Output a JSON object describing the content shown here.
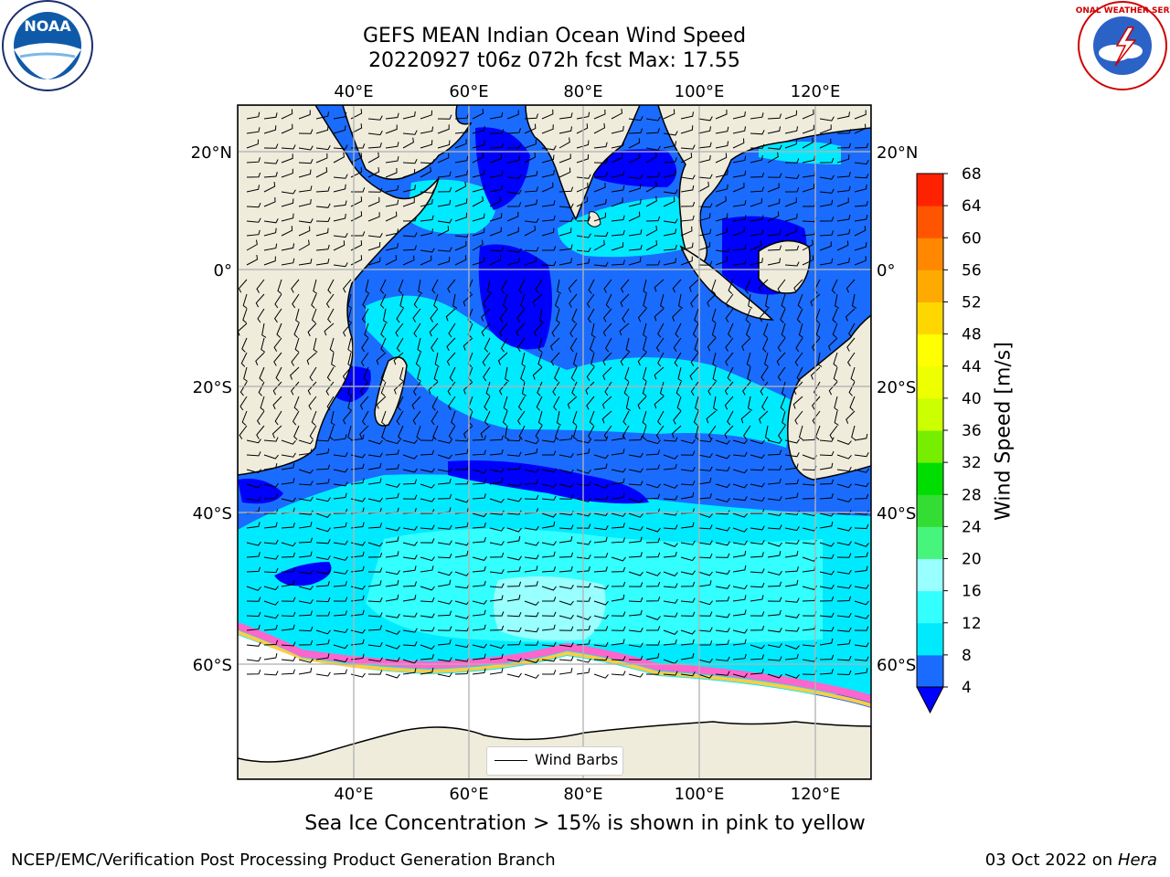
{
  "title": {
    "line1": "GEFS MEAN Indian Ocean Wind Speed",
    "line2": "20220927 t06z 072h fcst   Max: 17.55"
  },
  "logos": {
    "left": "NOAA",
    "right": "NATIONAL WEATHER SERVICE"
  },
  "map": {
    "lon_ticks": [
      "40°E",
      "60°E",
      "80°E",
      "100°E",
      "120°E"
    ],
    "lat_ticks": [
      "20°N",
      "0°",
      "20°S",
      "40°S",
      "60°S"
    ],
    "legend_label": "Wind Barbs",
    "colors": {
      "land": "#efecdc",
      "ice_land": "#ffffff",
      "ice_edge": [
        "#ff66cc",
        "#ff9966",
        "#ffcc44"
      ]
    }
  },
  "colorbar": {
    "label": "Wind Speed [m/s]",
    "ticks": [
      "4",
      "8",
      "12",
      "16",
      "20",
      "24",
      "28",
      "32",
      "36",
      "40",
      "44",
      "48",
      "52",
      "56",
      "60",
      "64",
      "68"
    ],
    "colors": [
      "#1a6cff",
      "#00eaff",
      "#33ffff",
      "#99ffff",
      "#48f57c",
      "#33dd33",
      "#00dd00",
      "#77ee00",
      "#ccff00",
      "#eeff00",
      "#ffff00",
      "#ffd700",
      "#ffaa00",
      "#ff8800",
      "#ff5500",
      "#ff2200",
      "#ff0000"
    ],
    "under_color": "#0000ff"
  },
  "caption": "Sea Ice Concentration > 15% is shown in pink to yellow",
  "footer": {
    "left": "NCEP/EMC/Verification Post Processing Product Generation Branch",
    "right_date": "03 Oct 2022 on",
    "right_host": "Hera"
  }
}
